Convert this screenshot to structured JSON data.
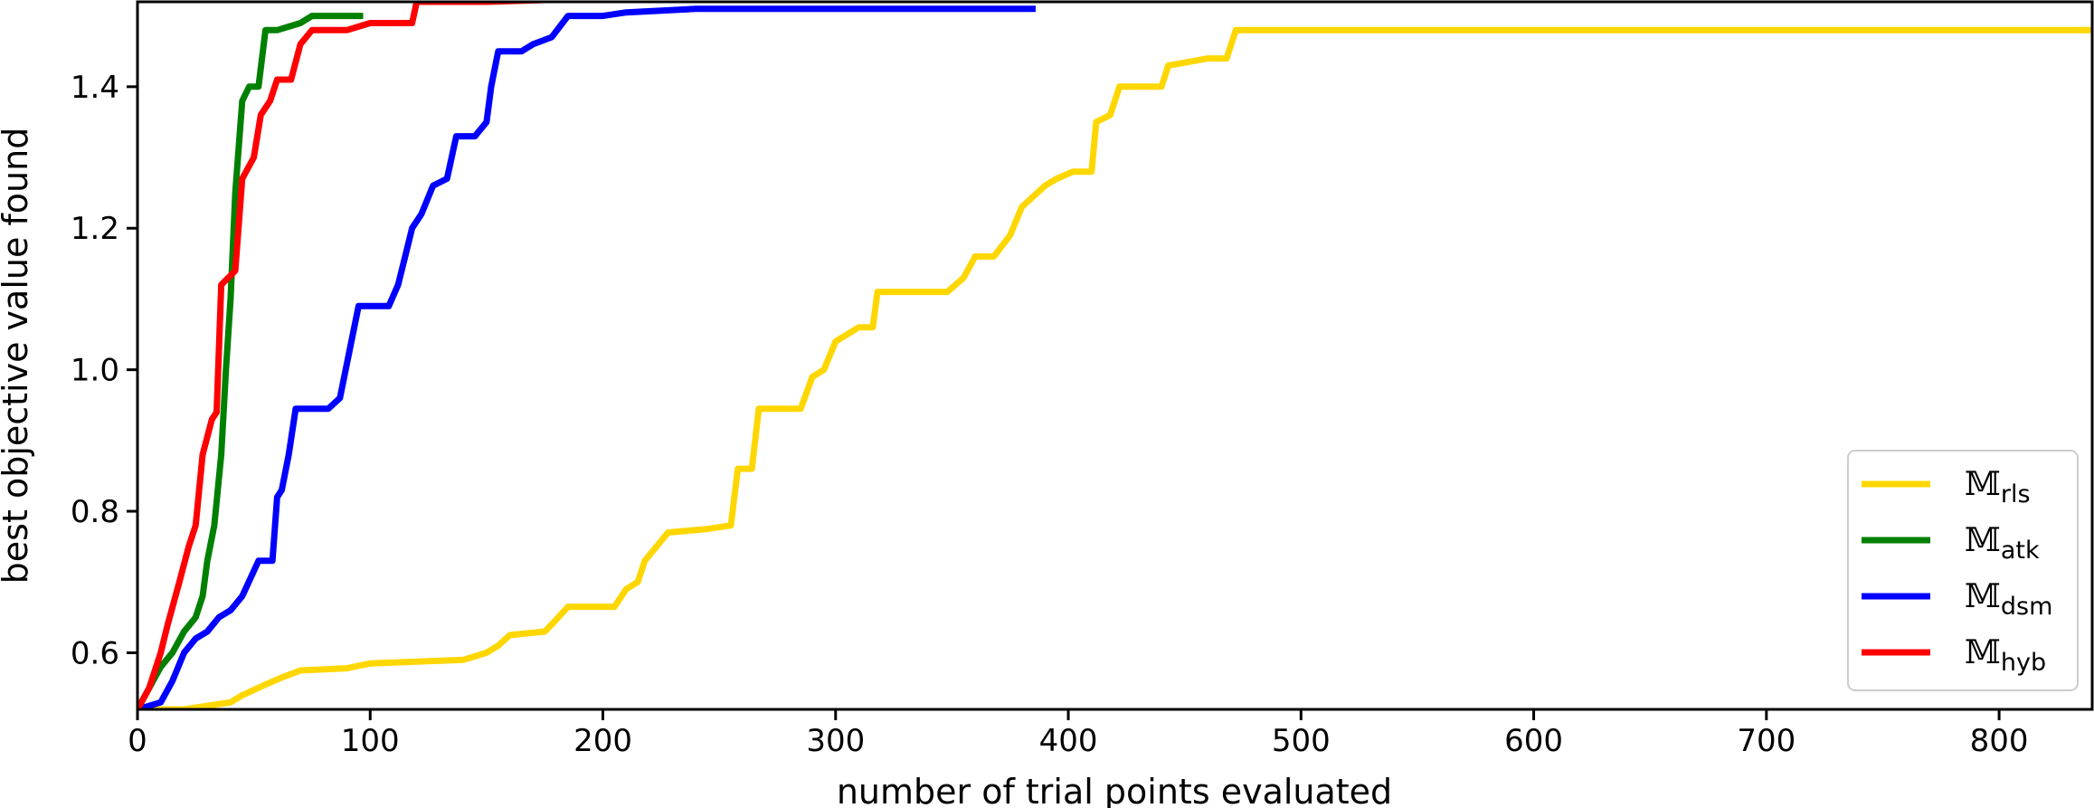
{
  "chart_data": {
    "type": "line",
    "title": "",
    "xlabel": "number of trial points evaluated",
    "ylabel": "best objective value found",
    "xlim": [
      0,
      840
    ],
    "ylim": [
      0.52,
      1.52
    ],
    "xticks": [
      0,
      100,
      200,
      300,
      400,
      500,
      600,
      700,
      800
    ],
    "yticks": [
      0.6,
      0.8,
      1.0,
      1.2,
      1.4
    ],
    "ytick_labels": [
      "0.6",
      "0.8",
      "1.0",
      "1.2",
      "1.4"
    ],
    "grid": false,
    "legend_position": "lower-right",
    "series": [
      {
        "name": "𝕄rls",
        "symbol": "𝕄",
        "subscript": "rls",
        "color": "#FFD700",
        "points": [
          [
            0,
            0.52
          ],
          [
            20,
            0.52
          ],
          [
            40,
            0.53
          ],
          [
            45,
            0.54
          ],
          [
            55,
            0.555
          ],
          [
            62,
            0.565
          ],
          [
            70,
            0.575
          ],
          [
            90,
            0.578
          ],
          [
            100,
            0.585
          ],
          [
            140,
            0.59
          ],
          [
            150,
            0.6
          ],
          [
            155,
            0.61
          ],
          [
            160,
            0.625
          ],
          [
            175,
            0.63
          ],
          [
            178,
            0.64
          ],
          [
            185,
            0.665
          ],
          [
            205,
            0.665
          ],
          [
            210,
            0.69
          ],
          [
            215,
            0.7
          ],
          [
            218,
            0.73
          ],
          [
            228,
            0.77
          ],
          [
            245,
            0.775
          ],
          [
            255,
            0.78
          ],
          [
            258,
            0.86
          ],
          [
            264,
            0.86
          ],
          [
            267,
            0.945
          ],
          [
            285,
            0.945
          ],
          [
            290,
            0.99
          ],
          [
            295,
            1.0
          ],
          [
            300,
            1.04
          ],
          [
            310,
            1.06
          ],
          [
            316,
            1.06
          ],
          [
            318,
            1.11
          ],
          [
            330,
            1.11
          ],
          [
            348,
            1.11
          ],
          [
            355,
            1.13
          ],
          [
            360,
            1.16
          ],
          [
            368,
            1.16
          ],
          [
            375,
            1.19
          ],
          [
            380,
            1.23
          ],
          [
            390,
            1.26
          ],
          [
            395,
            1.27
          ],
          [
            402,
            1.28
          ],
          [
            410,
            1.28
          ],
          [
            412,
            1.35
          ],
          [
            418,
            1.36
          ],
          [
            422,
            1.4
          ],
          [
            430,
            1.4
          ],
          [
            440,
            1.4
          ],
          [
            443,
            1.43
          ],
          [
            460,
            1.44
          ],
          [
            468,
            1.44
          ],
          [
            472,
            1.48
          ],
          [
            520,
            1.48
          ],
          [
            600,
            1.48
          ],
          [
            700,
            1.48
          ],
          [
            840,
            1.48
          ]
        ]
      },
      {
        "name": "𝕄atk",
        "symbol": "𝕄",
        "subscript": "atk",
        "color": "#008000",
        "points": [
          [
            0,
            0.52
          ],
          [
            5,
            0.55
          ],
          [
            10,
            0.58
          ],
          [
            15,
            0.6
          ],
          [
            20,
            0.63
          ],
          [
            25,
            0.65
          ],
          [
            28,
            0.68
          ],
          [
            30,
            0.73
          ],
          [
            33,
            0.78
          ],
          [
            36,
            0.88
          ],
          [
            38,
            1.0
          ],
          [
            40,
            1.1
          ],
          [
            42,
            1.25
          ],
          [
            45,
            1.38
          ],
          [
            48,
            1.4
          ],
          [
            52,
            1.4
          ],
          [
            55,
            1.48
          ],
          [
            60,
            1.48
          ],
          [
            70,
            1.49
          ],
          [
            75,
            1.5
          ],
          [
            85,
            1.5
          ],
          [
            97,
            1.5
          ]
        ]
      },
      {
        "name": "𝕄dsm",
        "symbol": "𝕄",
        "subscript": "dsm",
        "color": "#0000FF",
        "points": [
          [
            0,
            0.52
          ],
          [
            10,
            0.53
          ],
          [
            15,
            0.56
          ],
          [
            20,
            0.6
          ],
          [
            25,
            0.62
          ],
          [
            30,
            0.63
          ],
          [
            35,
            0.65
          ],
          [
            40,
            0.66
          ],
          [
            45,
            0.68
          ],
          [
            52,
            0.73
          ],
          [
            58,
            0.73
          ],
          [
            60,
            0.82
          ],
          [
            62,
            0.83
          ],
          [
            65,
            0.88
          ],
          [
            68,
            0.945
          ],
          [
            82,
            0.945
          ],
          [
            87,
            0.96
          ],
          [
            95,
            1.09
          ],
          [
            108,
            1.09
          ],
          [
            112,
            1.12
          ],
          [
            115,
            1.16
          ],
          [
            118,
            1.2
          ],
          [
            122,
            1.22
          ],
          [
            127,
            1.26
          ],
          [
            133,
            1.27
          ],
          [
            137,
            1.33
          ],
          [
            145,
            1.33
          ],
          [
            150,
            1.35
          ],
          [
            152,
            1.4
          ],
          [
            155,
            1.45
          ],
          [
            165,
            1.45
          ],
          [
            170,
            1.46
          ],
          [
            178,
            1.47
          ],
          [
            185,
            1.5
          ],
          [
            200,
            1.5
          ],
          [
            210,
            1.505
          ],
          [
            240,
            1.51
          ],
          [
            300,
            1.51
          ],
          [
            386,
            1.51
          ]
        ]
      },
      {
        "name": "𝕄hyb",
        "symbol": "𝕄",
        "subscript": "hyb",
        "color": "#FF0000",
        "points": [
          [
            0,
            0.52
          ],
          [
            5,
            0.55
          ],
          [
            10,
            0.6
          ],
          [
            13,
            0.64
          ],
          [
            18,
            0.7
          ],
          [
            22,
            0.75
          ],
          [
            25,
            0.78
          ],
          [
            28,
            0.88
          ],
          [
            32,
            0.93
          ],
          [
            34,
            0.94
          ],
          [
            36,
            1.12
          ],
          [
            42,
            1.14
          ],
          [
            45,
            1.27
          ],
          [
            50,
            1.3
          ],
          [
            53,
            1.36
          ],
          [
            57,
            1.38
          ],
          [
            60,
            1.41
          ],
          [
            66,
            1.41
          ],
          [
            70,
            1.46
          ],
          [
            75,
            1.48
          ],
          [
            90,
            1.48
          ],
          [
            100,
            1.49
          ],
          [
            118,
            1.49
          ],
          [
            120,
            1.52
          ],
          [
            150,
            1.52
          ],
          [
            200,
            1.525
          ],
          [
            260,
            1.525
          ]
        ]
      }
    ]
  }
}
